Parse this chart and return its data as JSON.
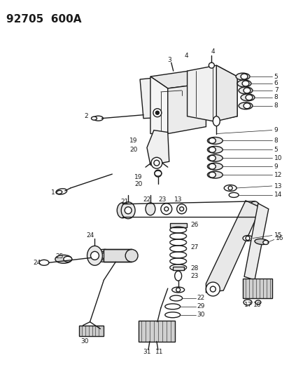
{
  "title": "92705  600A",
  "bg_color": "#ffffff",
  "line_color": "#1a1a1a",
  "title_fontsize": 11,
  "label_fontsize": 6.5,
  "fig_width": 4.14,
  "fig_height": 5.33,
  "dpi": 100
}
